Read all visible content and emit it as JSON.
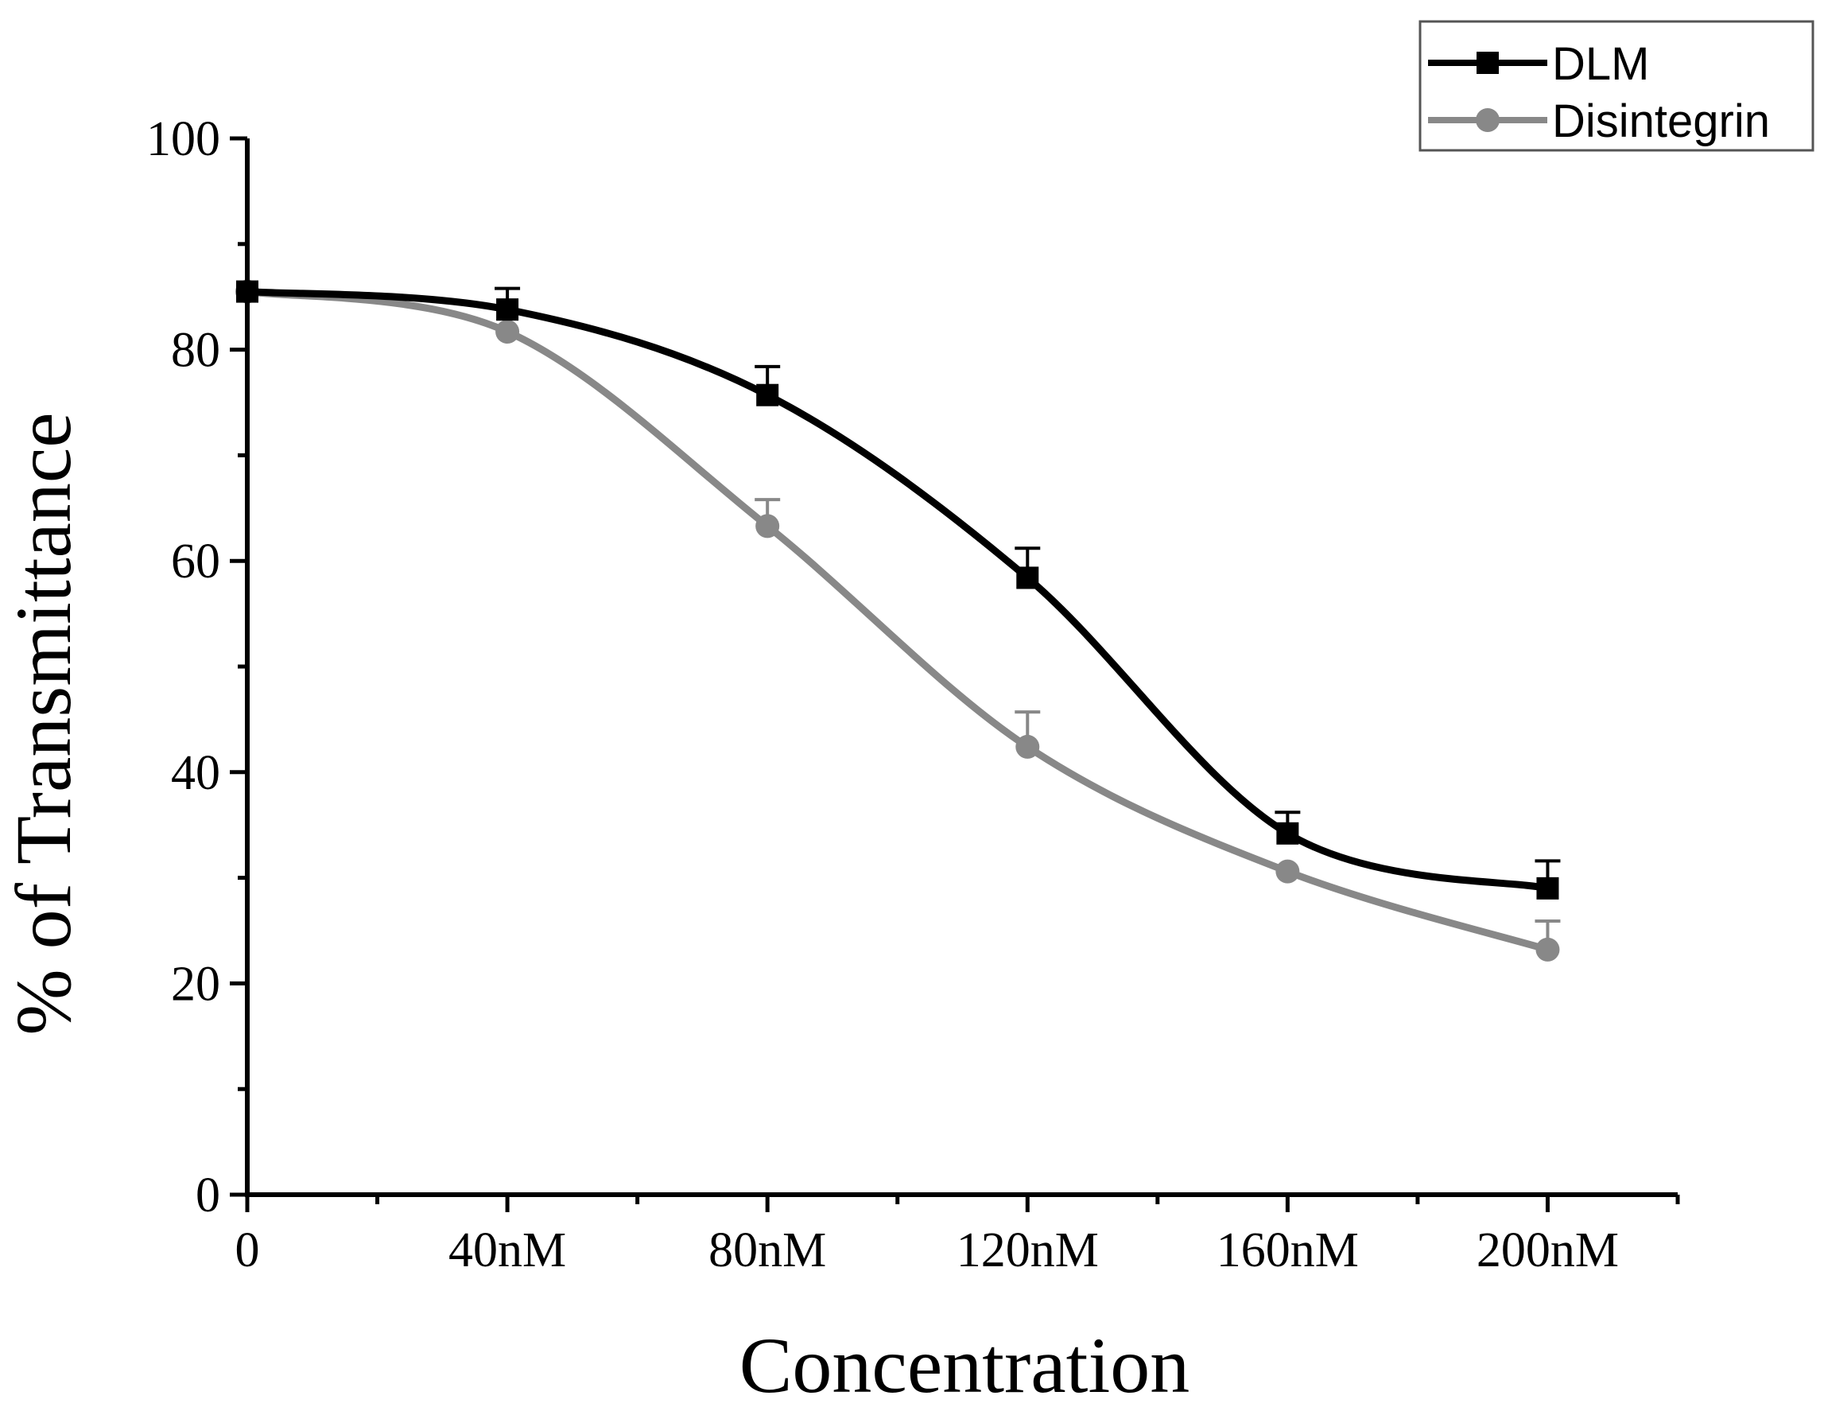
{
  "chart_data": {
    "type": "line",
    "title": "",
    "xlabel": "Concentration",
    "ylabel": "% of Transmittance",
    "categories": [
      "0",
      "40nM",
      "80nM",
      "120nM",
      "160nM",
      "200nM"
    ],
    "x": [
      0,
      40,
      80,
      120,
      160,
      200
    ],
    "xlim": [
      0,
      220
    ],
    "ylim": [
      0,
      100
    ],
    "yticks": [
      0,
      20,
      40,
      60,
      80,
      100
    ],
    "grid": false,
    "legend_position": "top-right",
    "series": [
      {
        "name": "DLM",
        "color": "#000000",
        "marker": "square",
        "values": [
          85.5,
          83.8,
          75.7,
          58.4,
          34.2,
          29.0
        ],
        "errors": [
          0,
          2.0,
          2.7,
          2.8,
          2.0,
          2.6
        ]
      },
      {
        "name": "Disintegrin",
        "color": "#888888",
        "marker": "circle",
        "values": [
          85.5,
          81.7,
          63.3,
          42.4,
          30.6,
          23.2
        ],
        "errors": [
          0,
          0,
          2.5,
          3.3,
          0,
          2.7
        ]
      }
    ]
  }
}
